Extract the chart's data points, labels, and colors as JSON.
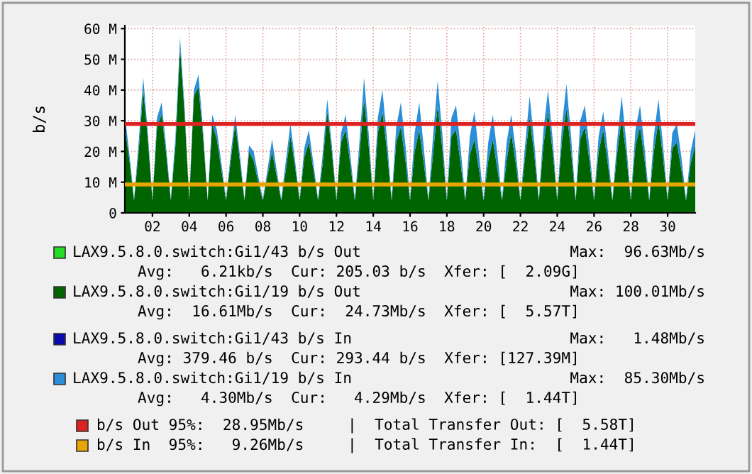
{
  "chart_data": {
    "type": "area",
    "stacked": true,
    "ylabel": "b/s",
    "x": [
      1,
      1.25,
      1.5,
      1.75,
      2,
      2.25,
      2.5,
      2.75,
      3,
      3.25,
      3.5,
      3.75,
      4,
      4.25,
      4.5,
      4.75,
      5,
      5.25,
      5.5,
      5.75,
      6,
      6.25,
      6.5,
      6.75,
      7,
      7.25,
      7.5,
      7.75,
      8,
      8.25,
      8.5,
      8.75,
      9,
      9.25,
      9.5,
      9.75,
      10,
      10.25,
      10.5,
      10.75,
      11,
      11.25,
      11.5,
      11.75,
      12,
      12.25,
      12.5,
      12.75,
      13,
      13.25,
      13.5,
      13.75,
      14,
      14.25,
      14.5,
      14.75,
      15,
      15.25,
      15.5,
      15.75,
      16,
      16.25,
      16.5,
      16.75,
      17,
      17.25,
      17.5,
      17.75,
      18,
      18.25,
      18.5,
      18.75,
      19,
      19.25,
      19.5,
      19.75,
      20,
      20.25,
      20.5,
      20.75,
      21,
      21.25,
      21.5,
      21.75,
      22,
      22.25,
      22.5,
      22.75,
      23,
      23.25,
      23.5,
      23.75,
      24,
      24.25,
      24.5,
      24.75,
      25,
      25.25,
      25.5,
      25.75,
      26,
      26.25,
      26.5,
      26.75,
      27,
      27.25,
      27.5,
      27.75,
      28,
      28.25,
      28.5,
      28.75,
      29,
      29.25,
      29.5,
      29.75,
      30,
      30.25,
      30.5,
      30.75,
      31,
      31.25,
      31.5,
      31.75,
      32
    ],
    "series": [
      {
        "name": "LAX9.5.8.0.switch:Gi1/43 b/s Out",
        "color": "#22dd22",
        "values": [
          null,
          null,
          null,
          null,
          null,
          null,
          null,
          null,
          null,
          null,
          null,
          null,
          null,
          null,
          null,
          null,
          null,
          null,
          null,
          null,
          null,
          null,
          null,
          null,
          null,
          null,
          null,
          null,
          null,
          null,
          null,
          null,
          null,
          null,
          null,
          null,
          null,
          null,
          null,
          null,
          null,
          null,
          null,
          null,
          null,
          null,
          null,
          null,
          null,
          null,
          null,
          null,
          null,
          null,
          null,
          null,
          null,
          null,
          null,
          null,
          null,
          null,
          null,
          null,
          null,
          null,
          null,
          null,
          null,
          null,
          null,
          null,
          null,
          null,
          null,
          null,
          null,
          null,
          null,
          null,
          null,
          null,
          null,
          null,
          null,
          null,
          null,
          null,
          null,
          null,
          null,
          null,
          null,
          null,
          null,
          null,
          null,
          null,
          null,
          null,
          null,
          null,
          null,
          null,
          null,
          null,
          null,
          null,
          null,
          null,
          null,
          null,
          null,
          null,
          null,
          null,
          null,
          null,
          null,
          null,
          null,
          null,
          null,
          null,
          null
        ]
      },
      {
        "name": "LAX9.5.8.0.switch:Gi1/19 b/s Out",
        "color": "#006400",
        "values": [
          28,
          17,
          4,
          20,
          40,
          24,
          4,
          28,
          32,
          19,
          4,
          22,
          54,
          32,
          4,
          38,
          41,
          25,
          4,
          29,
          24,
          14,
          4,
          17,
          29,
          17,
          4,
          20,
          17,
          10,
          4,
          12,
          20,
          12,
          4,
          14,
          25,
          15,
          4,
          18,
          23,
          14,
          4,
          16,
          33,
          20,
          4,
          23,
          27,
          16,
          4,
          19,
          37,
          22,
          4,
          26,
          33,
          20,
          4,
          23,
          28,
          17,
          4,
          20,
          27,
          16,
          4,
          19,
          35,
          21,
          4,
          25,
          27,
          16,
          4,
          19,
          24,
          14,
          4,
          17,
          24,
          14,
          4,
          17,
          26,
          16,
          4,
          18,
          31,
          19,
          4,
          22,
          33,
          20,
          4,
          23,
          34,
          20,
          4,
          24,
          28,
          17,
          4,
          20,
          27,
          16,
          4,
          19,
          31,
          19,
          4,
          22,
          28,
          17,
          4,
          20,
          30,
          18,
          4,
          21,
          23,
          14,
          4,
          16,
          22
        ]
      },
      {
        "name": "LAX9.5.8.0.switch:Gi1/43 b/s In",
        "color": "#0a0aaa",
        "values": [
          null,
          null,
          null,
          null,
          null,
          null,
          null,
          null,
          null,
          null,
          null,
          null,
          null,
          null,
          null,
          null,
          null,
          null,
          null,
          null,
          null,
          null,
          null,
          null,
          null,
          null,
          null,
          null,
          null,
          null,
          null,
          null,
          null,
          null,
          null,
          null,
          null,
          null,
          null,
          null,
          null,
          null,
          null,
          null,
          null,
          null,
          null,
          null,
          null,
          null,
          null,
          null,
          null,
          null,
          null,
          null,
          null,
          null,
          null,
          null,
          null,
          null,
          null,
          null,
          null,
          null,
          null,
          null,
          null,
          null,
          null,
          null,
          null,
          null,
          null,
          null,
          null,
          null,
          null,
          null,
          null,
          null,
          null,
          null,
          null,
          null,
          null,
          null,
          null,
          null,
          null,
          null,
          null,
          null,
          null,
          null,
          null,
          null,
          null,
          null,
          null,
          null,
          null,
          null,
          null,
          null,
          null,
          null,
          null,
          null,
          null,
          null,
          null,
          null,
          null,
          null,
          null,
          null,
          null,
          null,
          null,
          null,
          null,
          null,
          null
        ]
      },
      {
        "name": "LAX9.5.8.0.switch:Gi1/19 b/s In",
        "color": "#2a8fd8",
        "values": [
          4,
          2,
          0.5,
          3,
          4,
          2,
          0.5,
          3,
          4,
          2,
          0.5,
          3,
          3,
          2,
          0.5,
          2,
          4,
          2,
          0.5,
          3,
          3,
          2,
          0.5,
          2,
          3,
          2,
          0.5,
          2,
          3,
          2,
          0.5,
          2,
          4,
          2,
          0.5,
          3,
          4,
          2,
          0.5,
          3,
          4,
          2,
          0.5,
          3,
          4,
          2,
          0.5,
          3,
          5,
          3,
          0.5,
          4,
          7,
          4,
          0.5,
          5,
          7,
          4,
          0.5,
          5,
          8,
          5,
          0.5,
          6,
          9,
          5,
          0.5,
          6,
          8,
          5,
          0.5,
          6,
          8,
          5,
          0.5,
          6,
          9,
          5,
          0.5,
          6,
          8,
          5,
          0.5,
          6,
          6,
          4,
          0.5,
          4,
          7,
          4,
          0.5,
          5,
          7,
          4,
          0.5,
          5,
          8,
          5,
          0.5,
          6,
          7,
          4,
          0.5,
          5,
          6,
          4,
          0.5,
          4,
          7,
          4,
          0.5,
          5,
          7,
          4,
          0.5,
          5,
          7,
          4,
          0.5,
          5,
          6,
          4,
          0.5,
          4,
          5
        ]
      }
    ],
    "xlim": [
      1,
      32
    ],
    "xticks": [
      {
        "value": 2.5,
        "label": "02"
      },
      {
        "value": 4.5,
        "label": "04"
      },
      {
        "value": 6.5,
        "label": "06"
      },
      {
        "value": 8.5,
        "label": "08"
      },
      {
        "value": 10.5,
        "label": "10"
      },
      {
        "value": 12.5,
        "label": "12"
      },
      {
        "value": 14.5,
        "label": "14"
      },
      {
        "value": 16.5,
        "label": "16"
      },
      {
        "value": 18.5,
        "label": "18"
      },
      {
        "value": 20.5,
        "label": "20"
      },
      {
        "value": 22.5,
        "label": "22"
      },
      {
        "value": 24.5,
        "label": "24"
      },
      {
        "value": 26.5,
        "label": "26"
      },
      {
        "value": 28.5,
        "label": "28"
      },
      {
        "value": 30.5,
        "label": "30"
      }
    ],
    "ylim": [
      0,
      61
    ],
    "yticks": [
      0,
      {
        "value": 10,
        "label": "10 M"
      },
      {
        "value": 20,
        "label": "20 M"
      },
      {
        "value": 30,
        "label": "30 M"
      },
      {
        "value": 40,
        "label": "40 M"
      },
      {
        "value": 50,
        "label": "50 M"
      },
      {
        "value": 60,
        "label": "60 M"
      }
    ],
    "ref_lines": [
      {
        "axis": "y",
        "value": 28.95,
        "label": "b/s Out 95%:  28.95Mb/s",
        "color": "#dd2222"
      },
      {
        "axis": "y",
        "value": 9.26,
        "label": "b/s In  95%:   9.26Mb/s",
        "color": "#e8a400"
      }
    ],
    "annotations": [
      "Max:  96.63Mb/s",
      "Avg:   6.21kb/s  Cur: 205.03 b/s  Xfer: [  2.09G]",
      "Max: 100.01Mb/s",
      "Avg:  16.61Mb/s  Cur:  24.73Mb/s  Xfer: [  5.57T]",
      "Max:   1.48Mb/s",
      "Avg: 379.46 b/s  Cur: 293.44 b/s  Xfer: [127.39M]",
      "Max:  85.30Mb/s",
      "Avg:   4.30Mb/s  Cur:   4.29Mb/s  Xfer: [  1.44T]",
      "|  Total Transfer Out: [  5.58T]",
      "|  Total Transfer In:  [  1.44T]"
    ],
    "grid": true,
    "legend": "bottom"
  }
}
